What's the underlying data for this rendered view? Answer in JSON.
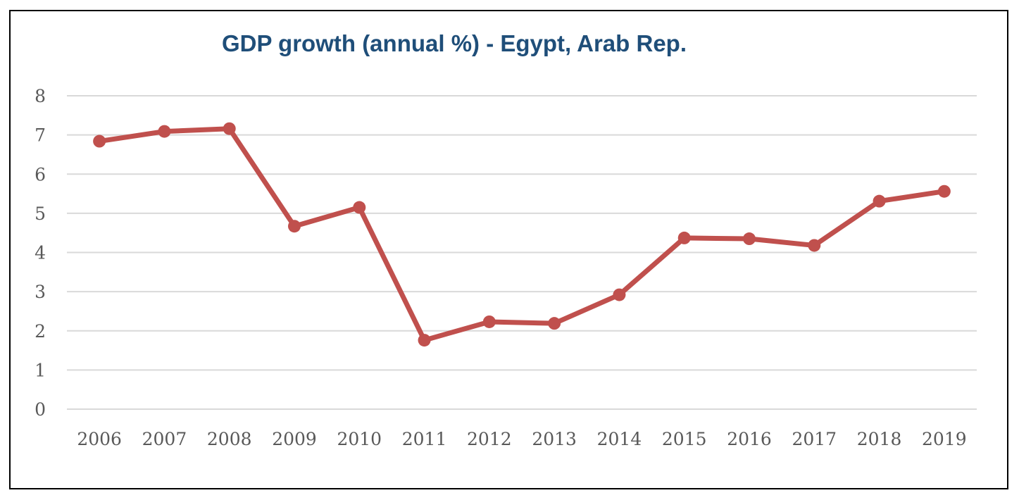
{
  "chart_data": {
    "type": "line",
    "title": "GDP growth (annual %) - Egypt, Arab Rep.",
    "xlabel": "",
    "ylabel": "",
    "categories": [
      "2006",
      "2007",
      "2008",
      "2009",
      "2010",
      "2011",
      "2012",
      "2013",
      "2014",
      "2015",
      "2016",
      "2017",
      "2018",
      "2019"
    ],
    "series": [
      {
        "values": [
          6.84,
          7.09,
          7.16,
          4.67,
          5.15,
          1.76,
          2.23,
          2.19,
          2.92,
          4.37,
          4.35,
          4.18,
          5.31,
          5.56
        ],
        "color": "#c0504d"
      }
    ],
    "ylim": [
      0,
      8
    ],
    "yticks": [
      "0",
      "1",
      "2",
      "3",
      "4",
      "5",
      "6",
      "7",
      "8"
    ],
    "grid": true,
    "legend": "none",
    "colors": {
      "title": "#1f4e79",
      "gridline": "#d9d9d9",
      "tick_text": "#595959"
    }
  }
}
